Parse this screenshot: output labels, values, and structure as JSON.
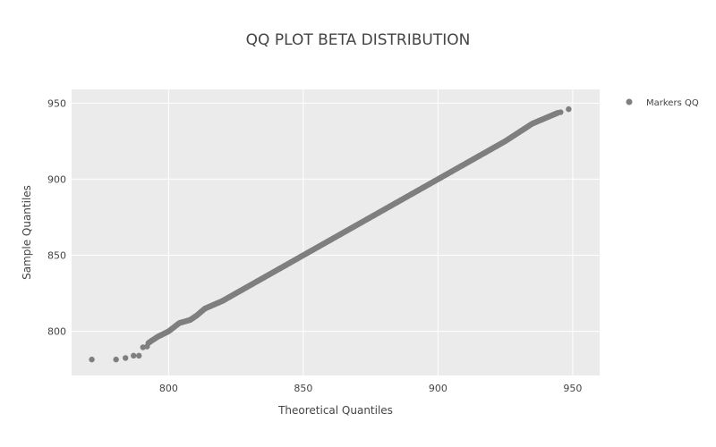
{
  "chart_data": {
    "type": "scatter",
    "title": "QQ PLOT BETA DISTRIBUTION",
    "xlabel": "Theoretical Quantiles",
    "ylabel": "Sample Quantiles",
    "xlim": [
      764,
      960
    ],
    "ylim": [
      771,
      959
    ],
    "xticks": [
      800,
      850,
      900,
      950
    ],
    "yticks": [
      800,
      850,
      900,
      950
    ],
    "grid": true,
    "legend_position": "top-right",
    "marker_color": "#7f7f7f",
    "plot_background": "#ebebeb",
    "series": [
      {
        "name": "Markers QQ",
        "generator": "piecewise-linear",
        "count": 500,
        "x_start": 771.5,
        "x_end": 948.5,
        "anchors": [
          [
            771.5,
            781.5
          ],
          [
            780.5,
            781.5
          ],
          [
            784.0,
            782.5
          ],
          [
            787.0,
            784.0
          ],
          [
            789.0,
            784.0
          ],
          [
            790.5,
            789.5
          ],
          [
            793.0,
            793.0
          ],
          [
            796.0,
            796.5
          ],
          [
            800.0,
            800.0
          ],
          [
            804.0,
            805.5
          ],
          [
            808.0,
            807.5
          ],
          [
            810.5,
            810.5
          ],
          [
            813.5,
            815.0
          ],
          [
            820.0,
            820.0
          ],
          [
            830.0,
            830.0
          ],
          [
            850.0,
            850.0
          ],
          [
            900.0,
            900.0
          ],
          [
            925.0,
            925.0
          ],
          [
            935.0,
            936.5
          ],
          [
            945.0,
            944.0
          ],
          [
            948.5,
            946.0
          ]
        ],
        "explicit_points": [
          [
            771.5,
            781.5
          ],
          [
            780.5,
            781.5
          ],
          [
            784.0,
            782.5
          ],
          [
            787.0,
            784.0
          ],
          [
            789.0,
            784.0
          ],
          [
            790.5,
            789.5
          ],
          [
            792.0,
            790.0
          ],
          [
            945.5,
            944.0
          ],
          [
            948.5,
            946.0
          ]
        ]
      }
    ]
  }
}
